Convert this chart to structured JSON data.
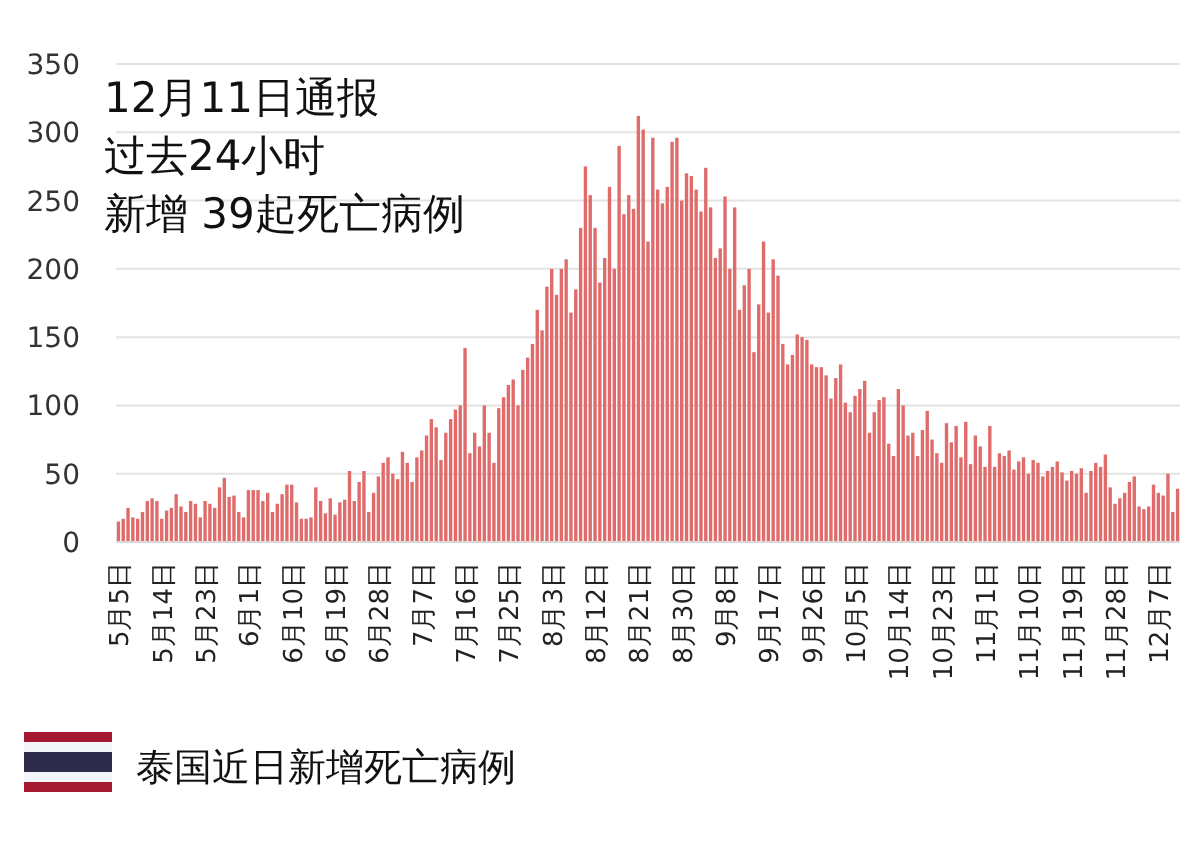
{
  "chart_data": {
    "type": "bar",
    "title": "12月11日通报",
    "subtitle": "过去24小时",
    "annotations": [
      "新增 39起死亡病例",
      "泰国近日新增死亡病例"
    ],
    "categories": [
      "5月5日",
      null,
      null,
      null,
      null,
      null,
      null,
      null,
      null,
      "5月14日",
      null,
      null,
      null,
      null,
      null,
      null,
      null,
      null,
      "5月23日",
      null,
      null,
      null,
      null,
      null,
      null,
      null,
      null,
      "6月1日",
      null,
      null,
      null,
      null,
      null,
      null,
      null,
      null,
      "6月10日",
      null,
      null,
      null,
      null,
      null,
      null,
      null,
      null,
      "6月19日",
      null,
      null,
      null,
      null,
      null,
      null,
      null,
      null,
      "6月28日",
      null,
      null,
      null,
      null,
      null,
      null,
      null,
      null,
      "7月7日",
      null,
      null,
      null,
      null,
      null,
      null,
      null,
      null,
      "7月16日",
      null,
      null,
      null,
      null,
      null,
      null,
      null,
      null,
      "7月25日",
      null,
      null,
      null,
      null,
      null,
      null,
      null,
      null,
      "8月3日",
      null,
      null,
      null,
      null,
      null,
      null,
      null,
      null,
      "8月12日",
      null,
      null,
      null,
      null,
      null,
      null,
      null,
      null,
      "8月21日",
      null,
      null,
      null,
      null,
      null,
      null,
      null,
      null,
      "8月30日",
      null,
      null,
      null,
      null,
      null,
      null,
      null,
      null,
      "9月8日",
      null,
      null,
      null,
      null,
      null,
      null,
      null,
      null,
      "9月17日",
      null,
      null,
      null,
      null,
      null,
      null,
      null,
      null,
      "9月26日",
      null,
      null,
      null,
      null,
      null,
      null,
      null,
      null,
      "10月5日",
      null,
      null,
      null,
      null,
      null,
      null,
      null,
      null,
      "10月14日",
      null,
      null,
      null,
      null,
      null,
      null,
      null,
      null,
      "10月23日",
      null,
      null,
      null,
      null,
      null,
      null,
      null,
      null,
      "11月1日",
      null,
      null,
      null,
      null,
      null,
      null,
      null,
      null,
      "11月10日",
      null,
      null,
      null,
      null,
      null,
      null,
      null,
      null,
      "11月19日",
      null,
      null,
      null,
      null,
      null,
      null,
      null,
      null,
      "11月28日",
      null,
      null,
      null,
      null,
      null,
      null,
      null,
      null,
      "12月7日",
      null,
      null,
      null,
      null
    ],
    "values": [
      15,
      17,
      25,
      18,
      17,
      22,
      30,
      32,
      30,
      17,
      23,
      25,
      35,
      26,
      22,
      30,
      28,
      18,
      30,
      28,
      25,
      40,
      47,
      33,
      34,
      22,
      18,
      38,
      38,
      38,
      30,
      36,
      22,
      28,
      35,
      42,
      42,
      29,
      17,
      17,
      18,
      40,
      30,
      21,
      32,
      20,
      29,
      31,
      52,
      30,
      44,
      52,
      22,
      36,
      48,
      58,
      62,
      50,
      46,
      66,
      58,
      44,
      62,
      67,
      78,
      90,
      84,
      60,
      80,
      90,
      97,
      100,
      142,
      65,
      80,
      70,
      100,
      80,
      58,
      98,
      106,
      115,
      119,
      100,
      126,
      135,
      145,
      170,
      155,
      187,
      200,
      181,
      200,
      207,
      168,
      185,
      230,
      275,
      254,
      230,
      190,
      208,
      260,
      200,
      290,
      240,
      254,
      244,
      312,
      302,
      220,
      296,
      258,
      248,
      260,
      293,
      296,
      250,
      270,
      268,
      258,
      242,
      274,
      245,
      208,
      215,
      253,
      200,
      245,
      170,
      188,
      200,
      139,
      174,
      220,
      168,
      207,
      195,
      145,
      130,
      137,
      152,
      150,
      148,
      130,
      128,
      128,
      122,
      105,
      120,
      130,
      102,
      95,
      107,
      112,
      118,
      80,
      95,
      104,
      106,
      72,
      63,
      112,
      100,
      78,
      80,
      63,
      82,
      96,
      75,
      65,
      58,
      87,
      73,
      85,
      62,
      88,
      57,
      78,
      70,
      55,
      85,
      55,
      65,
      63,
      67,
      53,
      59,
      62,
      50,
      60,
      58,
      48,
      52,
      55,
      59,
      51,
      45,
      52,
      50,
      54,
      36,
      52,
      58,
      55,
      64,
      40,
      28,
      32,
      36,
      44,
      48,
      26,
      24,
      26,
      42,
      36,
      34,
      50,
      22,
      39
    ],
    "color": "#e06b6b",
    "ylim": [
      0,
      350
    ],
    "yticks": [
      0,
      50,
      100,
      150,
      200,
      250,
      300,
      350
    ],
    "grid": "y"
  }
}
